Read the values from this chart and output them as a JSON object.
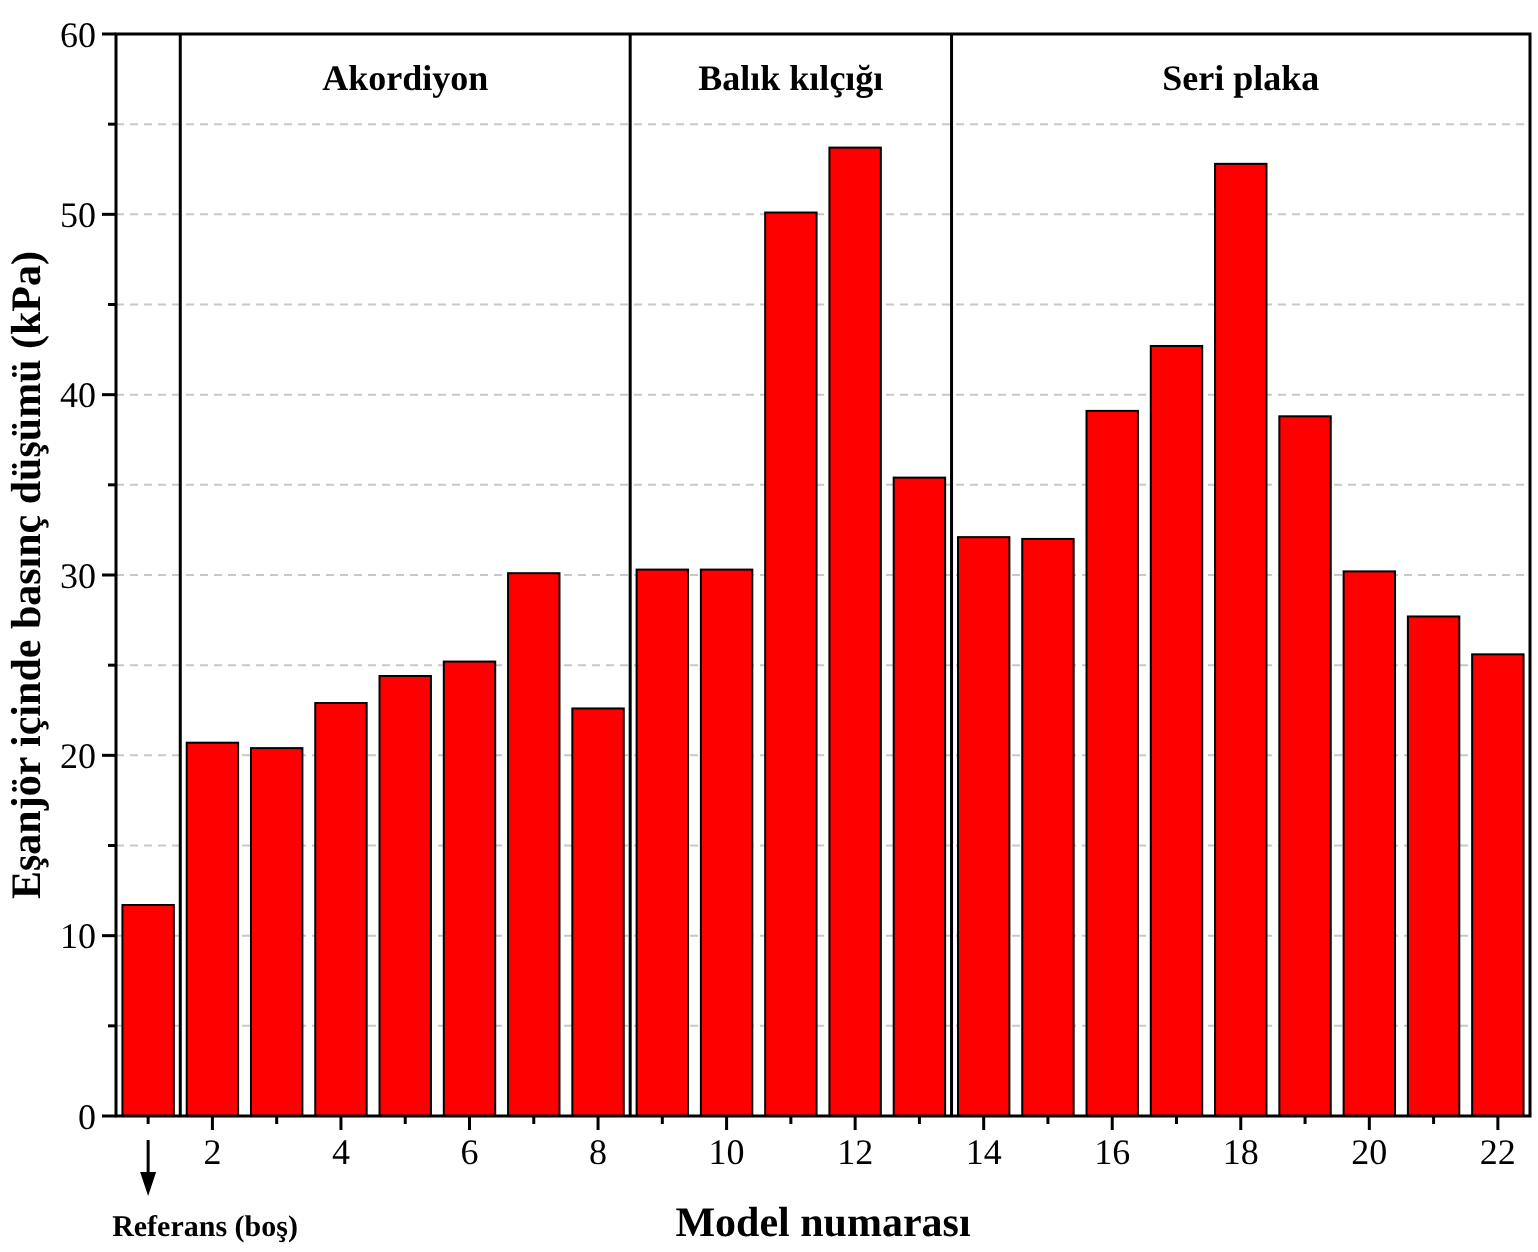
{
  "chart_data": {
    "type": "bar",
    "xlabel": "Model numarası",
    "ylabel": "Eşanjör içinde basınç düşümü (kPa)",
    "x": [
      1,
      2,
      3,
      4,
      5,
      6,
      7,
      8,
      9,
      10,
      11,
      12,
      13,
      14,
      15,
      16,
      17,
      18,
      19,
      20,
      21,
      22
    ],
    "values": [
      11.7,
      20.7,
      20.4,
      22.9,
      24.4,
      25.2,
      30.1,
      22.6,
      30.3,
      30.3,
      50.1,
      53.7,
      35.4,
      32.1,
      32.0,
      39.1,
      42.7,
      52.8,
      38.8,
      30.2,
      27.7,
      25.6
    ],
    "color": "#ff0000",
    "xlim": [
      0.5,
      22.5
    ],
    "xticks": [
      {
        "value": 1,
        "label": null
      },
      2,
      {
        "value": 3,
        "label": null
      },
      4,
      {
        "value": 5,
        "label": null
      },
      6,
      {
        "value": 7,
        "label": null
      },
      8,
      {
        "value": 9,
        "label": null
      },
      10,
      {
        "value": 11,
        "label": null
      },
      12,
      {
        "value": 13,
        "label": null
      },
      14,
      {
        "value": 15,
        "label": null
      },
      16,
      {
        "value": 17,
        "label": null
      },
      18,
      {
        "value": 19,
        "label": null
      },
      20,
      {
        "value": 21,
        "label": null
      },
      22
    ],
    "ylim": [
      0,
      60
    ],
    "yticks": [
      0,
      {
        "value": 5,
        "label": null
      },
      10,
      {
        "value": 15,
        "label": null
      },
      20,
      {
        "value": 25,
        "label": null
      },
      30,
      {
        "value": 35,
        "label": null
      },
      40,
      {
        "value": 45,
        "label": null
      },
      50,
      {
        "value": 55,
        "label": null
      },
      60
    ],
    "grid": "y",
    "ref_lines": [
      {
        "axis": "x",
        "value": 1.5,
        "color": "#000000"
      },
      {
        "axis": "x",
        "value": 8.5,
        "color": "#000000"
      },
      {
        "axis": "x",
        "value": 13.5,
        "color": "#000000"
      }
    ],
    "annotations": [
      "Akordiyon",
      "Balık kılçığı",
      "Seri plaka",
      "Referans (boş)"
    ]
  }
}
